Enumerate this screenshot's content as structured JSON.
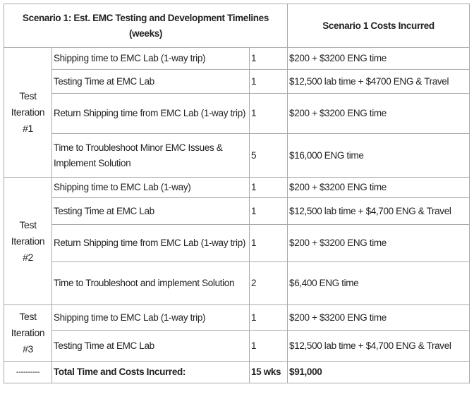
{
  "header": {
    "title": "Scenario 1: Est. EMC Testing and Development Timelines (weeks)",
    "costs": "Scenario 1 Costs Incurred"
  },
  "groups": [
    {
      "label": "Test Iteration #1",
      "rows": [
        {
          "task": "Shipping time to EMC Lab (1-way trip)",
          "time": "1",
          "cost": "$200 + $3200 ENG time"
        },
        {
          "task": "Testing Time at EMC Lab",
          "time": "1",
          "cost": "$12,500 lab time + $4700 ENG & Travel"
        },
        {
          "task": "Return Shipping time from EMC Lab (1-way trip)",
          "time": "1",
          "cost": "$200 + $3200 ENG time"
        },
        {
          "task": "Time to Troubleshoot Minor EMC Issues & Implement Solution",
          "time": "5",
          "cost": "$16,000 ENG time"
        }
      ]
    },
    {
      "label": "Test Iteration #2",
      "rows": [
        {
          "task": "Shipping time to EMC Lab (1-way)",
          "time": "1",
          "cost": "$200 + $3200 ENG time"
        },
        {
          "task": "Testing Time at EMC Lab",
          "time": "1",
          "cost": "$12,500 lab time + $4,700 ENG & Travel"
        },
        {
          "task": "Return Shipping time from EMC Lab (1-way trip)",
          "time": "1",
          "cost": "$200 + $3200 ENG time"
        },
        {
          "task": "Time to Troubleshoot and implement Solution",
          "time": "2",
          "cost": "$6,400 ENG time"
        }
      ]
    },
    {
      "label": "Test Iteration #3",
      "rows": [
        {
          "task": "Shipping time to EMC Lab (1-way trip)",
          "time": "1",
          "cost": "$200 + $3200 ENG time"
        },
        {
          "task": "Testing Time at EMC Lab",
          "time": "1",
          "cost": "$12,500 lab time + $4,700 ENG & Travel"
        }
      ]
    }
  ],
  "total": {
    "label": "----------",
    "task": "Total Time and Costs Incurred:",
    "time": "15 wks",
    "cost": "$91,000"
  }
}
